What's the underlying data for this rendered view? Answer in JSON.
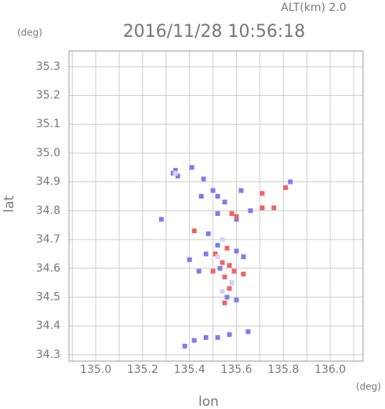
{
  "chart_data": {
    "type": "scatter",
    "title": "2016/11/28 10:56:18",
    "subtitle": "ALT(km)  2.0",
    "x_label": "lon",
    "y_label": "lat",
    "x_unit": "(deg)",
    "y_unit": "(deg)",
    "xlim": [
      134.886,
      136.14
    ],
    "ylim": [
      34.278,
      35.354
    ],
    "xticks": [
      {
        "value": 135,
        "label": "135.0"
      },
      135.2,
      135.4,
      135.6,
      135.8,
      {
        "value": 136,
        "label": "136.0"
      }
    ],
    "yticks": [
      34.3,
      34.4,
      34.5,
      34.6,
      34.7,
      34.8,
      34.9,
      {
        "value": 35,
        "label": "35.0"
      },
      35.1,
      35.2,
      35.3
    ],
    "xgrid": [
      134.9,
      135.1,
      135.3,
      135.5,
      135.7,
      135.9,
      136.1
    ],
    "grid": true,
    "series": [
      {
        "color": "#7c7cf0",
        "x": [
          135.33,
          135.35,
          135.41,
          135.34,
          135.46,
          135.5,
          135.52,
          135.45,
          135.55,
          135.62,
          135.66,
          135.83,
          135.28,
          135.52,
          135.6,
          135.48,
          135.52,
          135.4,
          135.47,
          135.6,
          135.63,
          135.53,
          135.58,
          135.44,
          135.56,
          135.6,
          135.38,
          135.42,
          135.47,
          135.52,
          135.57,
          135.65
        ],
        "values": [
          34.93,
          34.92,
          34.95,
          34.94,
          34.91,
          34.87,
          34.85,
          34.85,
          34.83,
          34.87,
          34.8,
          34.9,
          34.77,
          34.79,
          34.77,
          34.72,
          34.68,
          34.63,
          34.65,
          34.66,
          34.64,
          34.6,
          34.55,
          34.59,
          34.5,
          34.49,
          34.33,
          34.35,
          34.36,
          34.36,
          34.37,
          34.38
        ]
      },
      {
        "color": "#f06464",
        "x": [
          135.71,
          135.81,
          135.71,
          135.76,
          135.58,
          135.6,
          135.56,
          135.51,
          135.54,
          135.57,
          135.5,
          135.55,
          135.59,
          135.57,
          135.55,
          135.42,
          135.63
        ],
        "values": [
          34.86,
          34.88,
          34.81,
          34.81,
          34.79,
          34.78,
          34.67,
          34.65,
          34.62,
          34.61,
          34.59,
          34.57,
          34.59,
          34.53,
          34.48,
          34.73,
          34.58
        ]
      },
      {
        "color": "#d4d4f4",
        "x": [
          135.34,
          135.54,
          135.52,
          135.58,
          135.54
        ],
        "values": [
          34.93,
          34.7,
          34.64,
          34.55,
          34.52
        ]
      }
    ]
  }
}
